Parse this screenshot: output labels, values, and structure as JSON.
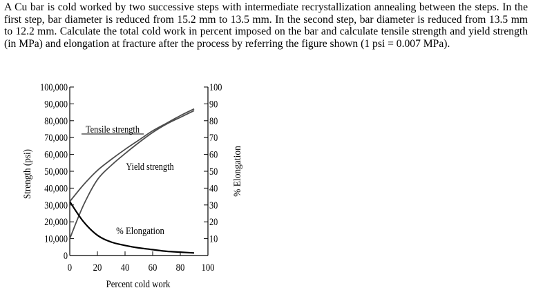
{
  "problem_text": "A Cu bar is cold worked by two successive steps with intermediate recrystallization annealing between the steps. In the first step, bar diameter is reduced from 15.2 mm to 13.5 mm. In the second step, bar diameter is reduced from 13.5 mm to 12.2 mm. Calculate the total cold work in percent imposed on the bar and calculate tensile strength and yield strength (in MPa) and elongation at fracture after the process by referring the figure shown (1 psi = 0.007 MPa).",
  "chart_data": {
    "type": "line",
    "xlabel": "Percent cold work",
    "ylabel": "Strength (psi)",
    "y2label": "% Elongation",
    "xlim": [
      0,
      100
    ],
    "ylim": [
      0,
      100000
    ],
    "y2lim": [
      0,
      100
    ],
    "x_ticks": [
      "0",
      "20",
      "40",
      "60",
      "80",
      "100"
    ],
    "y_ticks": [
      "0",
      "10,000",
      "20,000",
      "30,000",
      "40,000",
      "50,000",
      "60,000",
      "70,000",
      "80,000",
      "90,000",
      "100,000"
    ],
    "y2_ticks": [
      "10",
      "20",
      "30",
      "40",
      "50",
      "60",
      "70",
      "80",
      "90",
      "100"
    ],
    "series": [
      {
        "name": "Tensile strength",
        "axis": "left",
        "x": [
          0,
          10,
          20,
          30,
          40,
          50,
          60,
          70,
          80,
          90
        ],
        "y": [
          32000,
          42000,
          50500,
          57000,
          63000,
          68500,
          74000,
          78500,
          83000,
          87000
        ]
      },
      {
        "name": "Yield strength",
        "axis": "left",
        "x": [
          0,
          10,
          20,
          30,
          40,
          50,
          60,
          70,
          80,
          90
        ],
        "y": [
          10000,
          30000,
          45000,
          53500,
          60500,
          67000,
          73000,
          78000,
          82000,
          86000
        ]
      },
      {
        "name": "% Elongation",
        "axis": "right",
        "x": [
          0,
          10,
          20,
          30,
          40,
          50,
          60,
          70,
          80,
          90
        ],
        "y": [
          32,
          20,
          12,
          8,
          6,
          4.5,
          3.5,
          2.5,
          2,
          1.5
        ]
      }
    ]
  }
}
